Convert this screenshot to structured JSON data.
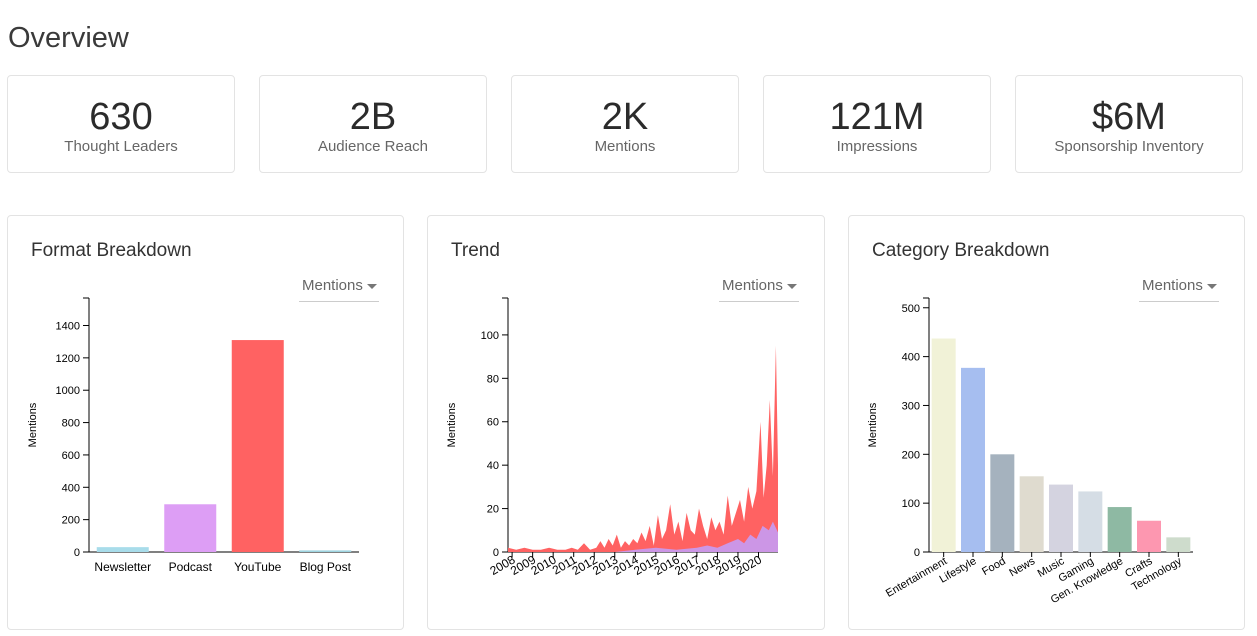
{
  "page": {
    "title": "Overview"
  },
  "kpis": [
    {
      "value": "630",
      "label": "Thought Leaders"
    },
    {
      "value": "2B",
      "label": "Audience Reach"
    },
    {
      "value": "2K",
      "label": "Mentions"
    },
    {
      "value": "121M",
      "label": "Impressions"
    },
    {
      "value": "$6M",
      "label": "Sponsorship Inventory"
    }
  ],
  "cards": [
    {
      "title": "Format Breakdown",
      "dropdown": "Mentions"
    },
    {
      "title": "Trend",
      "dropdown": "Mentions"
    },
    {
      "title": "Category Breakdown",
      "dropdown": "Mentions"
    }
  ],
  "chart_data": [
    {
      "type": "bar",
      "title": "Format Breakdown",
      "ylabel": "Mentions",
      "ylim": [
        0,
        1570
      ],
      "yticks": [
        0,
        200,
        400,
        600,
        800,
        1000,
        1200,
        1400
      ],
      "categories": [
        "Newsletter",
        "Podcast",
        "YouTube",
        "Blog Post"
      ],
      "values": [
        30,
        295,
        1310,
        10
      ],
      "colors": [
        "#a8dcea",
        "#dd9ef5",
        "#ff6262",
        "#9fd4e0"
      ]
    },
    {
      "type": "area",
      "title": "Trend",
      "ylabel": "Mentions",
      "ylim": [
        0,
        117
      ],
      "yticks": [
        0,
        20,
        40,
        60,
        80,
        100
      ],
      "xlim": [
        2007.8,
        2020.95
      ],
      "xticks": [
        "2008",
        "2009",
        "2010",
        "2011",
        "2012",
        "2013",
        "2014",
        "2015",
        "2016",
        "2017",
        "2018",
        "2019",
        "2020"
      ],
      "series": [
        {
          "color": "#ff6262",
          "x": [
            2007.8,
            2008.2,
            2008.6,
            2009.0,
            2009.4,
            2009.8,
            2010.2,
            2010.6,
            2010.9,
            2011.2,
            2011.5,
            2011.8,
            2012.1,
            2012.3,
            2012.5,
            2012.7,
            2012.9,
            2013.1,
            2013.3,
            2013.5,
            2013.7,
            2013.9,
            2014.1,
            2014.3,
            2014.5,
            2014.7,
            2014.9,
            2015.1,
            2015.3,
            2015.5,
            2015.7,
            2015.9,
            2016.1,
            2016.3,
            2016.5,
            2016.7,
            2016.9,
            2017.1,
            2017.3,
            2017.5,
            2017.7,
            2017.9,
            2018.1,
            2018.3,
            2018.5,
            2018.7,
            2018.9,
            2019.1,
            2019.3,
            2019.5,
            2019.7,
            2019.9,
            2020.1,
            2020.25,
            2020.4,
            2020.55,
            2020.7,
            2020.85,
            2020.95
          ],
          "y": [
            2,
            1,
            2,
            1,
            1,
            2,
            1,
            1,
            2,
            1,
            4,
            1,
            2,
            5,
            2,
            6,
            3,
            8,
            2,
            5,
            3,
            6,
            4,
            9,
            5,
            12,
            3,
            17,
            6,
            10,
            22,
            8,
            14,
            5,
            18,
            10,
            8,
            20,
            12,
            6,
            16,
            10,
            14,
            8,
            26,
            12,
            18,
            24,
            14,
            30,
            20,
            28,
            60,
            25,
            40,
            70,
            35,
            95,
            40
          ]
        },
        {
          "color": "#c79cf5",
          "x": [
            2007.8,
            2013.0,
            2014.0,
            2015.0,
            2016.0,
            2017.0,
            2017.5,
            2018.0,
            2018.5,
            2019.0,
            2019.3,
            2019.6,
            2019.9,
            2020.2,
            2020.5,
            2020.7,
            2020.95
          ],
          "y": [
            0,
            0,
            1,
            2,
            1,
            2,
            3,
            2,
            4,
            6,
            4,
            8,
            6,
            12,
            10,
            14,
            9
          ]
        }
      ]
    },
    {
      "type": "bar",
      "title": "Category Breakdown",
      "ylabel": "Mentions",
      "ylim": [
        0,
        520
      ],
      "yticks": [
        0,
        100,
        200,
        300,
        400,
        500
      ],
      "categories": [
        "Entertainment",
        "Lifestyle",
        "Food",
        "News",
        "Music",
        "Gaming",
        "Gen. Knowledge",
        "Crafts",
        "Technology"
      ],
      "values": [
        437,
        377,
        200,
        155,
        138,
        124,
        92,
        64,
        30
      ],
      "colors": [
        "#f1f2d7",
        "#a6bef0",
        "#a5b2be",
        "#dfdbcf",
        "#d4d3e0",
        "#d5dde5",
        "#8eb9a3",
        "#fd97b0",
        "#cedccc"
      ]
    }
  ]
}
